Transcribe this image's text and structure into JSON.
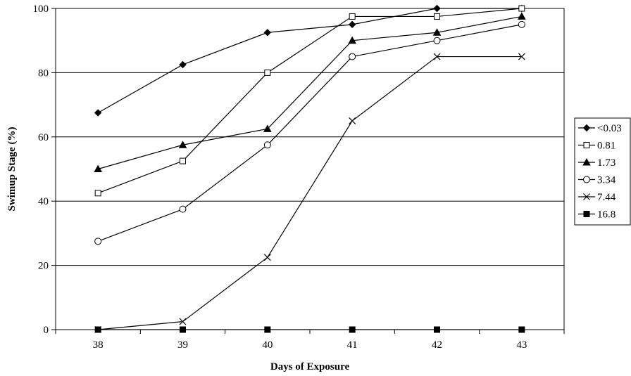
{
  "chart_data": {
    "type": "line",
    "title": "",
    "xlabel": "Days of Exposure",
    "ylabel": "Swimup Stage (%)",
    "x": [
      38,
      39,
      40,
      41,
      42,
      43
    ],
    "x_tick_labels": [
      "38",
      "39",
      "40",
      "41",
      "42",
      "43"
    ],
    "ylim": [
      0,
      100
    ],
    "y_ticks": [
      0,
      20,
      40,
      60,
      80,
      100
    ],
    "y_tick_labels": [
      "0",
      "20",
      "40",
      "60",
      "80",
      "100"
    ],
    "grid": "horizontal major",
    "legend_position": "right",
    "series": [
      {
        "name": "<0.03",
        "marker": "diamond-filled",
        "values": [
          67.5,
          82.5,
          92.5,
          95,
          100,
          100
        ]
      },
      {
        "name": "0.81",
        "marker": "square-open",
        "values": [
          42.5,
          52.5,
          80,
          97.5,
          97.5,
          100
        ]
      },
      {
        "name": "1.73",
        "marker": "triangle-filled",
        "values": [
          50,
          57.5,
          62.5,
          90,
          92.5,
          97.5
        ]
      },
      {
        "name": "3.34",
        "marker": "circle-open",
        "values": [
          27.5,
          37.5,
          57.5,
          85,
          90,
          95
        ]
      },
      {
        "name": "7.44",
        "marker": "cross",
        "values": [
          0,
          2.5,
          22.5,
          65,
          85,
          85
        ]
      },
      {
        "name": "16.8",
        "marker": "square-filled",
        "values": [
          0,
          0,
          0,
          0,
          0,
          0
        ]
      }
    ]
  }
}
